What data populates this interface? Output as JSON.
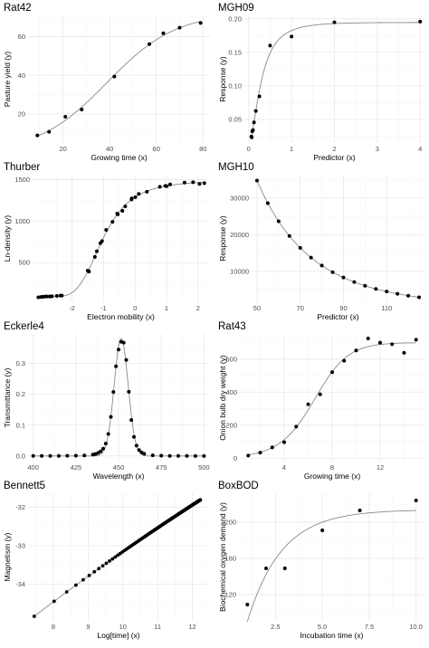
{
  "chart_data": [
    {
      "type": "scatter",
      "title": "Rat42",
      "xlabel": "Growing time (x)",
      "ylabel": "Pasture yield (y)",
      "xlim": [
        5,
        83
      ],
      "ylim": [
        5,
        71
      ],
      "xticks": [
        20,
        40,
        60,
        80
      ],
      "xticklabels": [
        "20",
        "40",
        "60",
        "80"
      ],
      "yticks": [
        20,
        40,
        60
      ],
      "yticklabels": [
        "20",
        "40",
        "60"
      ],
      "fit": {
        "kind": "logistic",
        "params": [
          72.46,
          2.618,
          0.0674
        ]
      },
      "points": {
        "x": [
          9,
          14,
          21,
          28,
          42,
          57,
          63,
          70,
          79
        ],
        "y": [
          8.93,
          10.8,
          18.59,
          22.33,
          39.35,
          56.11,
          61.73,
          64.62,
          67.08
        ]
      }
    },
    {
      "type": "scatter",
      "title": "MGH09",
      "xlabel": "Predictor (x)",
      "ylabel": "Response (y)",
      "xlim": [
        -0.1,
        4.1
      ],
      "ylim": [
        0.015,
        0.205
      ],
      "xticks": [
        0,
        1,
        2,
        3,
        4
      ],
      "xticklabels": [
        "0",
        "1",
        "2",
        "3",
        "4"
      ],
      "yticks": [
        0.05,
        0.1,
        0.15,
        0.2
      ],
      "yticklabels": [
        "0.05",
        "0.10",
        "0.15",
        "0.20"
      ],
      "fit": {
        "kind": "mgh09",
        "params": [
          0.1928,
          0.1913,
          0.123,
          0.1361
        ]
      },
      "points": {
        "x": [
          4,
          2,
          1,
          0.5,
          0.25,
          0.167,
          0.125,
          0.1,
          0.0833,
          0.0714,
          0.0625
        ],
        "y": [
          0.1957,
          0.1947,
          0.1735,
          0.16,
          0.0844,
          0.0627,
          0.0456,
          0.0342,
          0.0323,
          0.0235,
          0.0246
        ]
      }
    },
    {
      "type": "scatter",
      "title": "Thurber",
      "xlabel": "Electron mobility (x)",
      "ylabel": "Ln-density (y)",
      "xlim": [
        -3.25,
        2.35
      ],
      "ylim": [
        20,
        1560
      ],
      "xticks": [
        -2,
        -1,
        0,
        1,
        2
      ],
      "xticklabels": [
        "-2",
        "-1",
        "0",
        "1",
        "2"
      ],
      "yticks": [
        500,
        1000,
        1500
      ],
      "yticklabels": [
        "500",
        "1000",
        "1500"
      ],
      "fit": {
        "kind": "thurber",
        "params": [
          1288.14,
          1491.08,
          583.24,
          75.42,
          0.9663,
          0.398,
          0.0497
        ]
      },
      "points": {
        "x": [
          -3.067,
          -2.981,
          -2.921,
          -2.912,
          -2.84,
          -2.797,
          -2.702,
          -2.699,
          -2.633,
          -2.481,
          -2.363,
          -2.322,
          -1.501,
          -1.46,
          -1.274,
          -1.212,
          -1.1,
          -1.046,
          -0.915,
          -0.714,
          -0.566,
          -0.545,
          -0.4,
          -0.309,
          -0.109,
          -0.103,
          0.01,
          0.119,
          0.377,
          0.79,
          0.963,
          1.006,
          1.115,
          1.572,
          1.841,
          2.047,
          2.2
        ],
        "y": [
          80.574,
          84.248,
          87.264,
          87.195,
          89.076,
          89.608,
          89.868,
          90.101,
          92.405,
          95.854,
          100.696,
          101.06,
          401.672,
          390.724,
          567.534,
          635.316,
          733.054,
          759.087,
          894.206,
          990.785,
          1090.109,
          1080.914,
          1122.643,
          1178.351,
          1260.531,
          1273.514,
          1288.339,
          1327.543,
          1353.863,
          1414.509,
          1425.208,
          1421.384,
          1442.962,
          1464.35,
          1468.705,
          1447.894,
          1457.628
        ]
      }
    },
    {
      "type": "scatter",
      "title": "MGH10",
      "xlabel": "Predictor (x)",
      "ylabel": "Response (y)",
      "xlim": [
        47.5,
        127.5
      ],
      "ylim": [
        1500,
        36400
      ],
      "xticks": [
        50,
        70,
        90,
        110
      ],
      "xticklabels": [
        "50",
        "70",
        "90",
        "110"
      ],
      "yticks": [
        10000,
        20000,
        30000
      ],
      "yticklabels": [
        "10000",
        "20000",
        "30000"
      ],
      "fit": {
        "kind": "mgh10",
        "params": [
          0.005609636,
          6181.346,
          345.2236
        ]
      },
      "points": {
        "x": [
          50,
          55,
          60,
          65,
          70,
          75,
          80,
          85,
          90,
          95,
          100,
          105,
          110,
          115,
          120,
          125
        ],
        "y": [
          34780,
          28610,
          23650,
          19630,
          16370,
          13720,
          11540,
          9744,
          8261,
          7030,
          6005,
          5147,
          4427,
          3820,
          3307,
          2872
        ]
      }
    },
    {
      "type": "scatter",
      "title": "Eckerle4",
      "xlabel": "Wavelength (x)",
      "ylabel": "Transmittance (y)",
      "xlim": [
        397,
        503
      ],
      "ylim": [
        -0.018,
        0.395
      ],
      "xticks": [
        400,
        425,
        450,
        475,
        500
      ],
      "xticklabels": [
        "400",
        "425",
        "450",
        "475",
        "500"
      ],
      "yticks": [
        0,
        0.1,
        0.2,
        0.3
      ],
      "yticklabels": [
        "0.0",
        "0.1",
        "0.2",
        "0.3"
      ],
      "fit": {
        "kind": "eckerle4",
        "params": [
          1.5543827178,
          4.0888321754,
          451.54121844
        ]
      },
      "points": {
        "x": [
          400,
          405,
          410,
          415,
          420,
          425,
          430,
          435,
          436.5,
          438,
          439.5,
          441,
          442.5,
          444,
          445.5,
          447,
          448.5,
          450,
          451.5,
          453,
          454.5,
          456,
          457.5,
          459,
          460.5,
          462,
          463.5,
          465,
          470,
          475,
          480,
          485,
          490,
          495,
          500
        ],
        "y": [
          0.0001575,
          0.0001699,
          0.000235,
          0.0003102,
          0.0004917,
          0.000871,
          0.0017418,
          0.00464,
          0.0065895,
          0.0097302,
          0.0149002,
          0.023731,
          0.0401683,
          0.0712559,
          0.1264458,
          0.2073413,
          0.2902366,
          0.3445623,
          0.3698049,
          0.3668534,
          0.3106727,
          0.2078154,
          0.1164354,
          0.0616764,
          0.03372,
          0.0194023,
          0.0117831,
          0.0074357,
          0.0022732,
          0.00088,
          0.0004579,
          0.0002345,
          0.0001586,
          0.0001143,
          7.1e-05
        ]
      }
    },
    {
      "type": "scatter",
      "title": "Rat43",
      "xlabel": "Growing time (x)",
      "ylabel": "Onion bulb dry weight (y)",
      "xlim": [
        0.3,
        15.7
      ],
      "ylim": [
        -20,
        752
      ],
      "xticks": [
        4,
        8,
        12
      ],
      "xticklabels": [
        "4",
        "8",
        "12"
      ],
      "yticks": [
        0,
        200,
        400,
        600
      ],
      "yticklabels": [
        "0",
        "200",
        "400",
        "600"
      ],
      "fit": {
        "kind": "rat43",
        "params": [
          699.6415,
          5.2771,
          0.7596,
          1.2792
        ]
      },
      "points": {
        "x": [
          1,
          2,
          3,
          4,
          5,
          6,
          7,
          8,
          9,
          10,
          11,
          12,
          13,
          14,
          15
        ],
        "y": [
          16.08,
          33.83,
          65.8,
          97.2,
          191.55,
          326.2,
          386.87,
          520.53,
          590.03,
          651.92,
          724.93,
          699.56,
          689.96,
          637.56,
          717.41
        ]
      }
    },
    {
      "type": "scatter",
      "title": "Bennett5",
      "xlabel": "Log[time] (x)",
      "ylabel": "Magnetism (y)",
      "xlim": [
        7.27,
        12.48
      ],
      "ylim": [
        -34.95,
        -31.64
      ],
      "xticks": [
        8,
        9,
        10,
        11,
        12
      ],
      "xticklabels": [
        "8",
        "9",
        "10",
        "11",
        "12"
      ],
      "yticks": [
        -34,
        -33,
        -32
      ],
      "yticklabels": [
        "-34",
        "-33",
        "-32"
      ],
      "fit": {
        "kind": "bennett5",
        "params": [
          -2523.505,
          46.737,
          0.932184
        ]
      },
      "points": {
        "generator": "bennett5",
        "x_first": 7.447168,
        "x_last": 12.23,
        "count": 154
      }
    },
    {
      "type": "scatter",
      "title": "BoxBOD",
      "xlabel": "Incubation time (x)",
      "ylabel": "Biochemical oxygen demand (y)",
      "xlim": [
        0.55,
        10.45
      ],
      "ylim": [
        91,
        232
      ],
      "xticks": [
        2.5,
        5,
        7.5,
        10
      ],
      "xticklabels": [
        "2.5",
        "5.0",
        "7.5",
        "10.0"
      ],
      "yticks": [
        120,
        160,
        200
      ],
      "yticklabels": [
        "120",
        "160",
        "200"
      ],
      "fit": {
        "kind": "boxbod",
        "params": [
          213.81,
          0.5473
        ]
      },
      "points": {
        "x": [
          1,
          2,
          3,
          5,
          7,
          10
        ],
        "y": [
          109,
          149,
          149,
          191,
          213,
          224
        ]
      }
    }
  ]
}
